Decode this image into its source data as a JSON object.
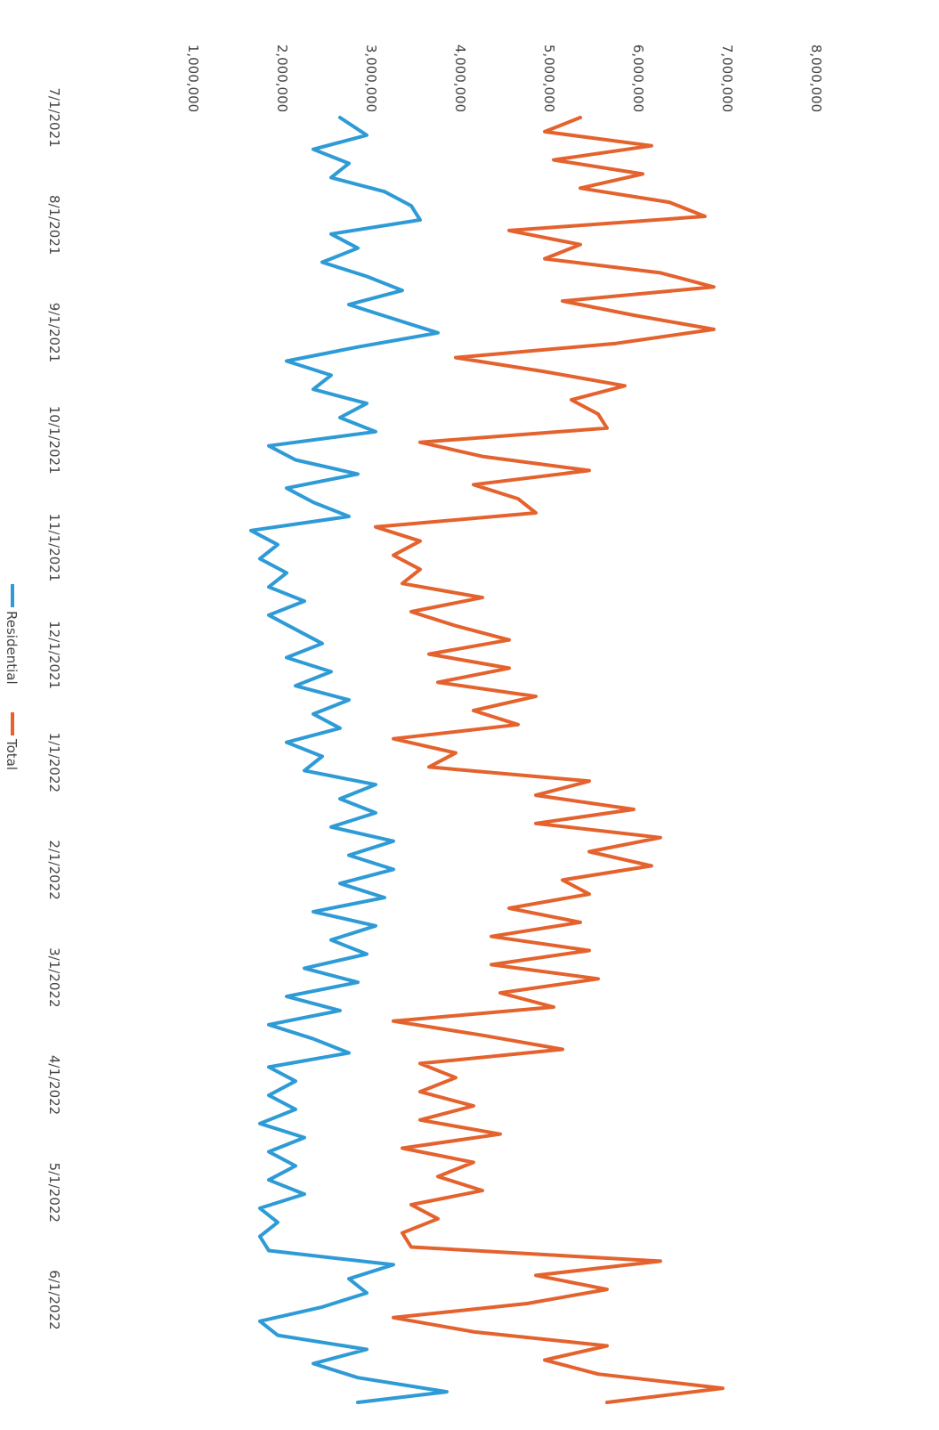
{
  "chart_data": {
    "type": "line",
    "orientation": "rotated-90-clockwise",
    "x_tick_labels": [
      "7/1/2021",
      "8/1/2021",
      "9/1/2021",
      "10/1/2021",
      "11/1/2021",
      "12/1/2021",
      "1/1/2022",
      "2/1/2022",
      "3/1/2022",
      "4/1/2022",
      "5/1/2022",
      "6/1/2022"
    ],
    "y_tick_labels": [
      "1,000,000",
      "2,000,000",
      "3,000,000",
      "4,000,000",
      "5,000,000",
      "6,000,000",
      "7,000,000",
      "8,000,000"
    ],
    "ylim": [
      1000000,
      8000000
    ],
    "grid": false,
    "legend_position": "bottom",
    "series": [
      {
        "name": "Residential",
        "color": "#2e9bd6",
        "points": [
          [
            "2021-07-01",
            2700000
          ],
          [
            "2021-07-06",
            3000000
          ],
          [
            "2021-07-10",
            2400000
          ],
          [
            "2021-07-14",
            2800000
          ],
          [
            "2021-07-18",
            2600000
          ],
          [
            "2021-07-22",
            3200000
          ],
          [
            "2021-07-26",
            3500000
          ],
          [
            "2021-07-30",
            3600000
          ],
          [
            "2021-08-03",
            2600000
          ],
          [
            "2021-08-07",
            2900000
          ],
          [
            "2021-08-11",
            2500000
          ],
          [
            "2021-08-15",
            3000000
          ],
          [
            "2021-08-19",
            3400000
          ],
          [
            "2021-08-23",
            2800000
          ],
          [
            "2021-08-27",
            3300000
          ],
          [
            "2021-08-31",
            3800000
          ],
          [
            "2021-09-04",
            2900000
          ],
          [
            "2021-09-08",
            2100000
          ],
          [
            "2021-09-12",
            2600000
          ],
          [
            "2021-09-16",
            2400000
          ],
          [
            "2021-09-20",
            3000000
          ],
          [
            "2021-09-24",
            2700000
          ],
          [
            "2021-09-28",
            3100000
          ],
          [
            "2021-10-02",
            1900000
          ],
          [
            "2021-10-06",
            2200000
          ],
          [
            "2021-10-10",
            2900000
          ],
          [
            "2021-10-14",
            2100000
          ],
          [
            "2021-10-18",
            2400000
          ],
          [
            "2021-10-22",
            2800000
          ],
          [
            "2021-10-26",
            1700000
          ],
          [
            "2021-10-30",
            2000000
          ],
          [
            "2021-11-03",
            1800000
          ],
          [
            "2021-11-07",
            2100000
          ],
          [
            "2021-11-11",
            1900000
          ],
          [
            "2021-11-15",
            2300000
          ],
          [
            "2021-11-19",
            1900000
          ],
          [
            "2021-11-23",
            2200000
          ],
          [
            "2021-11-27",
            2500000
          ],
          [
            "2021-12-01",
            2100000
          ],
          [
            "2021-12-05",
            2600000
          ],
          [
            "2021-12-09",
            2200000
          ],
          [
            "2021-12-13",
            2800000
          ],
          [
            "2021-12-17",
            2400000
          ],
          [
            "2021-12-21",
            2700000
          ],
          [
            "2021-12-25",
            2100000
          ],
          [
            "2021-12-29",
            2500000
          ],
          [
            "2022-01-02",
            2300000
          ],
          [
            "2022-01-06",
            3100000
          ],
          [
            "2022-01-10",
            2700000
          ],
          [
            "2022-01-14",
            3100000
          ],
          [
            "2022-01-18",
            2600000
          ],
          [
            "2022-01-22",
            3300000
          ],
          [
            "2022-01-26",
            2800000
          ],
          [
            "2022-01-30",
            3300000
          ],
          [
            "2022-02-03",
            2700000
          ],
          [
            "2022-02-07",
            3200000
          ],
          [
            "2022-02-11",
            2400000
          ],
          [
            "2022-02-15",
            3100000
          ],
          [
            "2022-02-19",
            2600000
          ],
          [
            "2022-02-23",
            3000000
          ],
          [
            "2022-02-27",
            2300000
          ],
          [
            "2022-03-03",
            2900000
          ],
          [
            "2022-03-07",
            2100000
          ],
          [
            "2022-03-11",
            2700000
          ],
          [
            "2022-03-15",
            1900000
          ],
          [
            "2022-03-19",
            2400000
          ],
          [
            "2022-03-23",
            2800000
          ],
          [
            "2022-03-27",
            1900000
          ],
          [
            "2022-03-31",
            2200000
          ],
          [
            "2022-04-04",
            1900000
          ],
          [
            "2022-04-08",
            2200000
          ],
          [
            "2022-04-12",
            1800000
          ],
          [
            "2022-04-16",
            2300000
          ],
          [
            "2022-04-20",
            1900000
          ],
          [
            "2022-04-24",
            2200000
          ],
          [
            "2022-04-28",
            1900000
          ],
          [
            "2022-05-02",
            2300000
          ],
          [
            "2022-05-06",
            1800000
          ],
          [
            "2022-05-10",
            2000000
          ],
          [
            "2022-05-14",
            1800000
          ],
          [
            "2022-05-18",
            1900000
          ],
          [
            "2022-05-22",
            3300000
          ],
          [
            "2022-05-26",
            2800000
          ],
          [
            "2022-05-30",
            3000000
          ],
          [
            "2022-06-03",
            2500000
          ],
          [
            "2022-06-07",
            1800000
          ],
          [
            "2022-06-11",
            2000000
          ],
          [
            "2022-06-15",
            3000000
          ],
          [
            "2022-06-19",
            2400000
          ],
          [
            "2022-06-23",
            2900000
          ],
          [
            "2022-06-27",
            3900000
          ],
          [
            "2022-06-30",
            2900000
          ]
        ]
      },
      {
        "name": "Total",
        "color": "#e4622d",
        "points": [
          [
            "2021-07-01",
            5400000
          ],
          [
            "2021-07-05",
            5000000
          ],
          [
            "2021-07-09",
            6200000
          ],
          [
            "2021-07-13",
            5100000
          ],
          [
            "2021-07-17",
            6100000
          ],
          [
            "2021-07-21",
            5400000
          ],
          [
            "2021-07-25",
            6400000
          ],
          [
            "2021-07-29",
            6800000
          ],
          [
            "2021-08-02",
            4600000
          ],
          [
            "2021-08-06",
            5400000
          ],
          [
            "2021-08-10",
            5000000
          ],
          [
            "2021-08-14",
            6300000
          ],
          [
            "2021-08-18",
            6900000
          ],
          [
            "2021-08-22",
            5200000
          ],
          [
            "2021-08-26",
            6000000
          ],
          [
            "2021-08-30",
            6900000
          ],
          [
            "2021-09-03",
            5800000
          ],
          [
            "2021-09-07",
            4000000
          ],
          [
            "2021-09-11",
            5000000
          ],
          [
            "2021-09-15",
            5900000
          ],
          [
            "2021-09-19",
            5300000
          ],
          [
            "2021-09-23",
            5600000
          ],
          [
            "2021-09-27",
            5700000
          ],
          [
            "2021-10-01",
            3600000
          ],
          [
            "2021-10-05",
            4300000
          ],
          [
            "2021-10-09",
            5500000
          ],
          [
            "2021-10-13",
            4200000
          ],
          [
            "2021-10-17",
            4700000
          ],
          [
            "2021-10-21",
            4900000
          ],
          [
            "2021-10-25",
            3100000
          ],
          [
            "2021-10-29",
            3600000
          ],
          [
            "2021-11-02",
            3300000
          ],
          [
            "2021-11-06",
            3600000
          ],
          [
            "2021-11-10",
            3400000
          ],
          [
            "2021-11-14",
            4300000
          ],
          [
            "2021-11-18",
            3500000
          ],
          [
            "2021-11-22",
            4000000
          ],
          [
            "2021-11-26",
            4600000
          ],
          [
            "2021-11-30",
            3700000
          ],
          [
            "2021-12-04",
            4600000
          ],
          [
            "2021-12-08",
            3800000
          ],
          [
            "2021-12-12",
            4900000
          ],
          [
            "2021-12-16",
            4200000
          ],
          [
            "2021-12-20",
            4700000
          ],
          [
            "2021-12-24",
            3300000
          ],
          [
            "2021-12-28",
            4000000
          ],
          [
            "2022-01-01",
            3700000
          ],
          [
            "2022-01-05",
            5500000
          ],
          [
            "2022-01-09",
            4900000
          ],
          [
            "2022-01-13",
            6000000
          ],
          [
            "2022-01-17",
            4900000
          ],
          [
            "2022-01-21",
            6300000
          ],
          [
            "2022-01-25",
            5500000
          ],
          [
            "2022-01-29",
            6200000
          ],
          [
            "2022-02-02",
            5200000
          ],
          [
            "2022-02-06",
            5500000
          ],
          [
            "2022-02-10",
            4600000
          ],
          [
            "2022-02-14",
            5400000
          ],
          [
            "2022-02-18",
            4400000
          ],
          [
            "2022-02-22",
            5500000
          ],
          [
            "2022-02-26",
            4400000
          ],
          [
            "2022-03-02",
            5600000
          ],
          [
            "2022-03-06",
            4500000
          ],
          [
            "2022-03-10",
            5100000
          ],
          [
            "2022-03-14",
            3300000
          ],
          [
            "2022-03-18",
            4300000
          ],
          [
            "2022-03-22",
            5200000
          ],
          [
            "2022-03-26",
            3600000
          ],
          [
            "2022-03-30",
            4000000
          ],
          [
            "2022-04-03",
            3600000
          ],
          [
            "2022-04-07",
            4200000
          ],
          [
            "2022-04-11",
            3600000
          ],
          [
            "2022-04-15",
            4500000
          ],
          [
            "2022-04-19",
            3400000
          ],
          [
            "2022-04-23",
            4200000
          ],
          [
            "2022-04-27",
            3800000
          ],
          [
            "2022-05-01",
            4300000
          ],
          [
            "2022-05-05",
            3500000
          ],
          [
            "2022-05-09",
            3800000
          ],
          [
            "2022-05-13",
            3400000
          ],
          [
            "2022-05-17",
            3500000
          ],
          [
            "2022-05-21",
            6300000
          ],
          [
            "2022-05-25",
            4900000
          ],
          [
            "2022-05-29",
            5700000
          ],
          [
            "2022-06-02",
            4800000
          ],
          [
            "2022-06-06",
            3300000
          ],
          [
            "2022-06-10",
            4200000
          ],
          [
            "2022-06-14",
            5700000
          ],
          [
            "2022-06-18",
            5000000
          ],
          [
            "2022-06-22",
            5600000
          ],
          [
            "2022-06-26",
            7000000
          ],
          [
            "2022-06-30",
            5700000
          ]
        ]
      }
    ]
  }
}
